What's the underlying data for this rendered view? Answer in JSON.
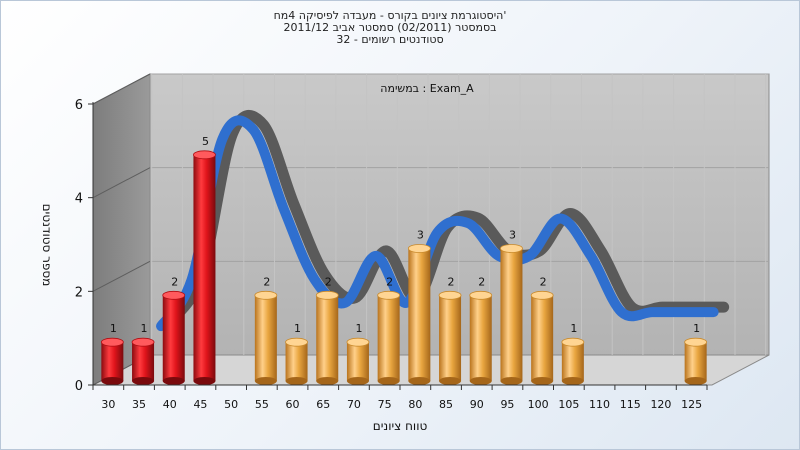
{
  "title_lines": [
    "היסטוגרמת ציונים בקורס - מעבדה לפיסיקה 4מח'",
    "בסמסטר  (02/2011)  סמסטר אביב 2011/12",
    "סטודנטים רשומים - 32"
  ],
  "colors": {
    "bar_red": "#e0141b",
    "bar_orange": "#e9a640",
    "curve_front": "#2f6fcf",
    "curve_back": "#5a5a5a",
    "back_wall": "#bdbdbd",
    "left_wall": "#8f8f8f",
    "floor": "#cfcfcf"
  },
  "chart_data": {
    "type": "bar",
    "title": "היסטוגרמת ציונים בקורס - מעבדה לפיסיקה 4מח'",
    "subtitle": "בסמסטר  (02/2011)  סמסטר אביב 2011/12 | סטודנטים רשומים - 32",
    "annotation": "במשימה : Exam_A",
    "xlabel": "טווח ציונים",
    "ylabel": "מספר סטודנטים",
    "ylim": [
      0,
      6
    ],
    "yticks": [
      0,
      2,
      4,
      6
    ],
    "grid": true,
    "categories": [
      "30",
      "35",
      "40",
      "45",
      "50",
      "55",
      "60",
      "65",
      "70",
      "75",
      "80",
      "85",
      "90",
      "95",
      "100",
      "105",
      "110",
      "115",
      "120",
      "125"
    ],
    "values": [
      1,
      1,
      2,
      5,
      0,
      2,
      1,
      2,
      1,
      2,
      3,
      2,
      2,
      3,
      2,
      1,
      0,
      0,
      0,
      1
    ],
    "failing_categories": [
      "30",
      "35",
      "40",
      "45",
      "50"
    ],
    "curve": {
      "type": "smoothed line",
      "x": [
        35,
        40,
        45,
        50,
        55,
        60,
        65,
        70,
        75,
        80,
        85,
        90,
        95,
        100,
        105,
        110,
        115,
        120,
        125
      ],
      "y": [
        1.0,
        2.0,
        5.0,
        5.2,
        3.5,
        2.0,
        1.5,
        2.5,
        1.5,
        3.0,
        3.2,
        2.5,
        2.5,
        3.3,
        2.5,
        1.3,
        1.3,
        1.3,
        1.3
      ]
    }
  }
}
